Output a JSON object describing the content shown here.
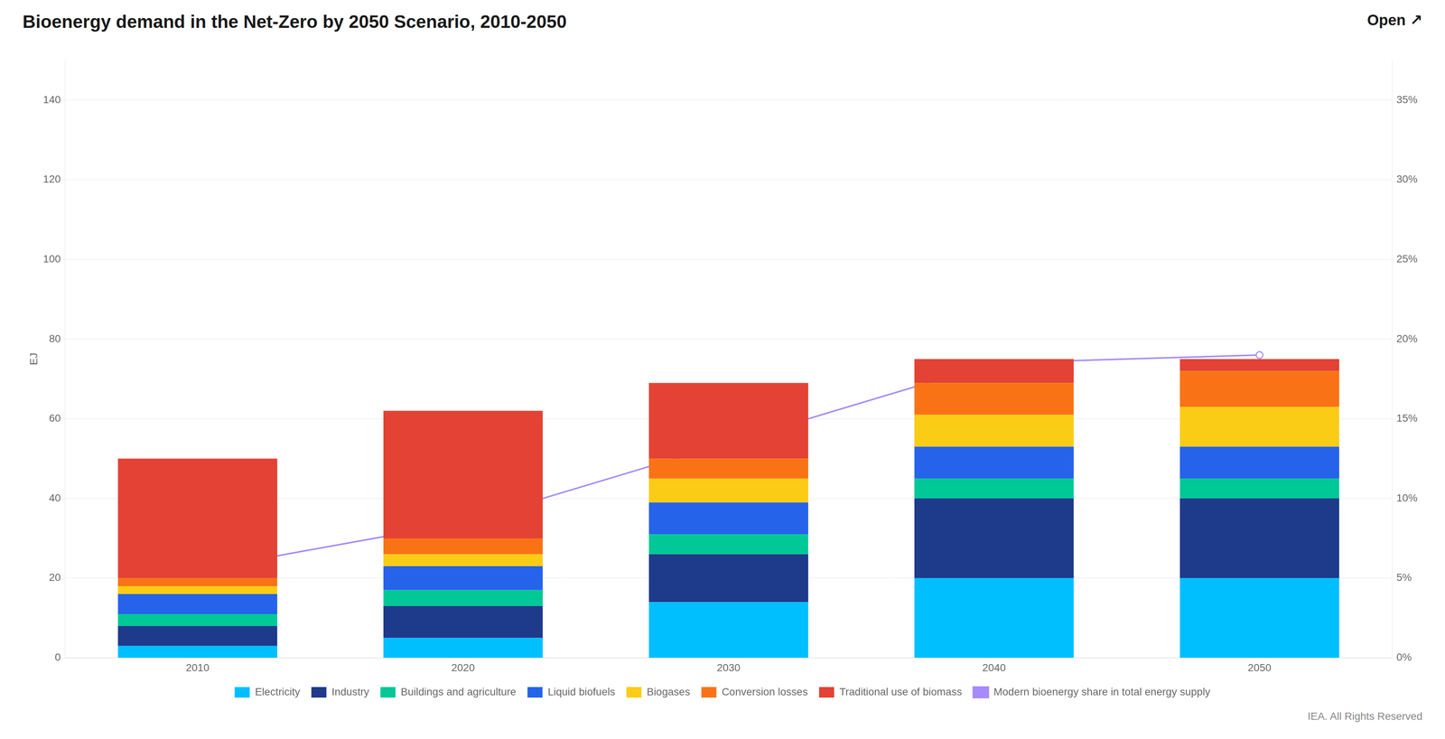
{
  "chart_data": {
    "type": "bar",
    "title": "Bioenergy demand in the Net-Zero by 2050 Scenario, 2010-2050",
    "y_label": "EJ",
    "annotations": [
      "Open ↗",
      "IEA. All Rights Reserved"
    ],
    "categories": [
      2010,
      2020,
      2030,
      2040,
      2050
    ],
    "stacked": true,
    "grid": true,
    "legend": "bottom",
    "ylim": [
      0,
      150
    ],
    "yticks": [
      0,
      20,
      40,
      60,
      80,
      100,
      120,
      140
    ],
    "y2lim": [
      0,
      0.375
    ],
    "y2ticks": [
      {
        "value": 0,
        "label": "0%"
      },
      {
        "value": 0.05,
        "label": "5%"
      },
      {
        "value": 0.1,
        "label": "10%"
      },
      {
        "value": 0.15,
        "label": "15%"
      },
      {
        "value": 0.2,
        "label": "20%"
      },
      {
        "value": 0.25,
        "label": "25%"
      },
      {
        "value": 0.3,
        "label": "30%"
      },
      {
        "value": 0.35,
        "label": "35%"
      }
    ],
    "series": [
      {
        "name": "Electricity",
        "type": "bar",
        "color": "#00BFFF",
        "values": [
          3,
          5,
          14,
          20,
          20
        ]
      },
      {
        "name": "Industry",
        "type": "bar",
        "color": "#1E3A8A",
        "values": [
          5,
          8,
          12,
          20,
          20
        ]
      },
      {
        "name": "Buildings and agriculture",
        "type": "bar",
        "color": "#00C896",
        "values": [
          3,
          4,
          5,
          5,
          5
        ]
      },
      {
        "name": "Liquid biofuels",
        "type": "bar",
        "color": "#2563EB",
        "values": [
          5,
          6,
          8,
          8,
          8
        ]
      },
      {
        "name": "Biogases",
        "type": "bar",
        "color": "#FACC15",
        "values": [
          2,
          3,
          6,
          8,
          10
        ]
      },
      {
        "name": "Conversion losses",
        "type": "bar",
        "color": "#F97316",
        "values": [
          2,
          4,
          5,
          8,
          9
        ]
      },
      {
        "name": "Traditional use of biomass",
        "type": "bar",
        "color": "#E34234",
        "values": [
          30,
          32,
          19,
          6,
          3
        ]
      },
      {
        "name": "Modern bioenergy share in total energy supply",
        "type": "line",
        "axis": "y2",
        "marker": "o",
        "color": "#A78BFA",
        "values": [
          0.055,
          0.085,
          0.135,
          0.185,
          0.19
        ]
      }
    ]
  }
}
